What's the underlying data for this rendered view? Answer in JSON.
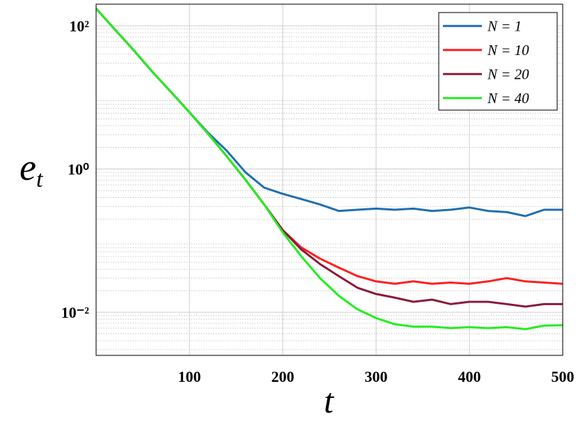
{
  "chart_data": {
    "type": "line",
    "xlabel": "t",
    "ylabel": {
      "base": "e",
      "subscript": "t"
    },
    "x": [
      0,
      20,
      40,
      60,
      80,
      100,
      120,
      140,
      160,
      180,
      200,
      220,
      240,
      260,
      280,
      300,
      320,
      340,
      360,
      380,
      400,
      420,
      440,
      460,
      480,
      500
    ],
    "series": [
      {
        "name": "N = 1",
        "color": "#1f6fb0",
        "values": [
          174,
          89,
          46,
          23,
          12,
          6.2,
          3.2,
          1.8,
          0.9,
          0.55,
          0.45,
          0.38,
          0.32,
          0.26,
          0.27,
          0.28,
          0.27,
          0.28,
          0.26,
          0.27,
          0.29,
          0.26,
          0.25,
          0.22,
          0.27,
          0.27
        ]
      },
      {
        "name": "N = 10",
        "color": "#ff1f1f",
        "values": [
          174,
          89,
          46,
          23,
          12,
          6.2,
          3.1,
          1.5,
          0.71,
          0.32,
          0.14,
          0.08,
          0.056,
          0.042,
          0.032,
          0.027,
          0.025,
          0.027,
          0.025,
          0.026,
          0.025,
          0.027,
          0.03,
          0.027,
          0.026,
          0.025
        ]
      },
      {
        "name": "N = 20",
        "color": "#8b1a3a",
        "values": [
          174,
          89,
          46,
          23,
          12,
          6.2,
          3.1,
          1.5,
          0.71,
          0.32,
          0.14,
          0.075,
          0.047,
          0.032,
          0.022,
          0.018,
          0.016,
          0.014,
          0.015,
          0.013,
          0.014,
          0.014,
          0.013,
          0.012,
          0.013,
          0.013
        ]
      },
      {
        "name": "N = 40",
        "color": "#22ee22",
        "values": [
          174,
          89,
          46,
          23,
          12,
          6.2,
          3.1,
          1.5,
          0.71,
          0.32,
          0.13,
          0.06,
          0.03,
          0.017,
          0.011,
          0.0083,
          0.0068,
          0.0063,
          0.0063,
          0.006,
          0.0062,
          0.006,
          0.0062,
          0.0058,
          0.0065,
          0.0066
        ]
      }
    ],
    "xlim": [
      0,
      500
    ],
    "xticks": [
      100,
      200,
      300,
      400,
      500
    ],
    "ylim": [
      0.0025,
      200
    ],
    "yscale": "log",
    "yticks": [
      {
        "value": 0.01,
        "label": "10⁻²"
      },
      {
        "value": 1,
        "label": "10⁰"
      },
      {
        "value": 100,
        "label": "10²"
      }
    ],
    "grid": true,
    "legend": "northeast"
  }
}
